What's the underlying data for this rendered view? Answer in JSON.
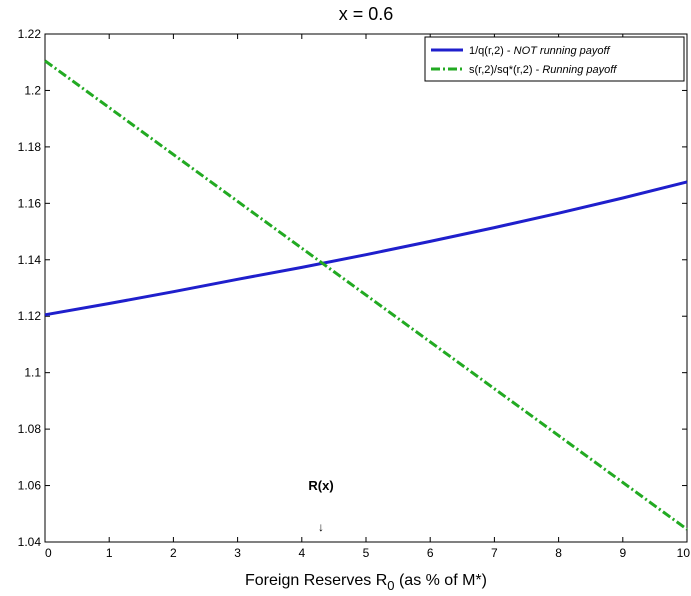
{
  "chart_data": {
    "type": "line",
    "title": "x = 0.6",
    "xlabel": {
      "main": "Foreign Reserves R",
      "sub": "0",
      "rest": " (as % of M*)"
    },
    "ylabel": "",
    "xlim": [
      0,
      10
    ],
    "ylim": [
      1.04,
      1.22
    ],
    "xticks": [
      "0",
      "1",
      "2",
      "3",
      "4",
      "5",
      "6",
      "7",
      "8",
      "9",
      "10"
    ],
    "yticks": [
      "1.04",
      "1.06",
      "1.08",
      "1.1",
      "1.12",
      "1.14",
      "1.16",
      "1.18",
      "1.2",
      "1.22"
    ],
    "grid": false,
    "legend_position": "top-right",
    "series": [
      {
        "name": "1/q(r,2) - ",
        "name_italic": "NOT running payoff",
        "color": "#1f1fcc",
        "style": "solid",
        "x": [
          0,
          1,
          2,
          3,
          4,
          5,
          6,
          7,
          8,
          9,
          10
        ],
        "values": [
          1.1205,
          1.1245,
          1.1287,
          1.1331,
          1.1373,
          1.1418,
          1.1465,
          1.1514,
          1.1565,
          1.1619,
          1.1676
        ]
      },
      {
        "name": "s(r,2)/sq*(r,2) - ",
        "name_italic": "Running payoff",
        "color": "#22aa22",
        "style": "dashdot",
        "x": [
          0,
          10
        ],
        "values": [
          1.2105,
          1.0445
        ]
      }
    ],
    "annotations": [
      {
        "text": "R(x)",
        "arrow": "↓",
        "x": 4.3
      }
    ]
  }
}
